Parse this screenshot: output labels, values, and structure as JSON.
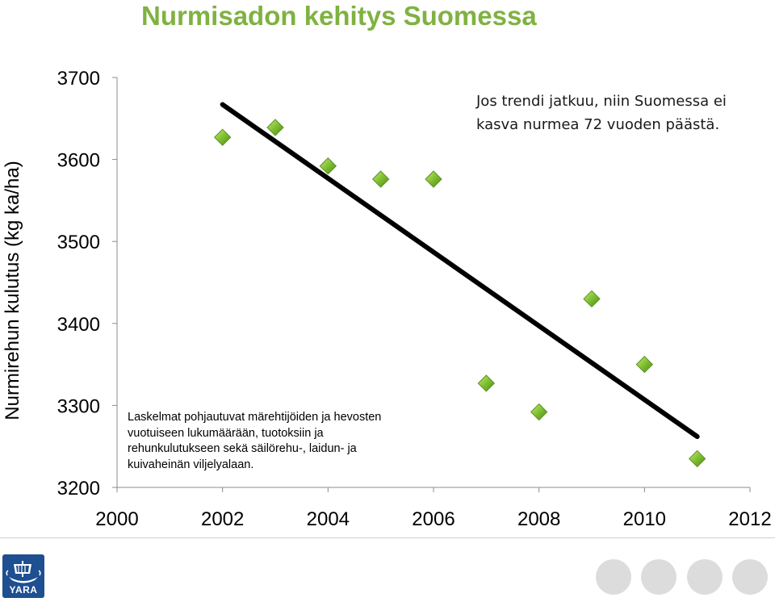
{
  "chart_data": {
    "type": "scatter",
    "title": "Nurmisadon kehitys Suomessa",
    "ylabel": "Nurmirehun kulutus  (kg ka/ha)",
    "xlabel": "",
    "xlim": [
      2000,
      2012
    ],
    "ylim": [
      3200,
      3700
    ],
    "xticks": [
      "2000",
      "2002",
      "2004",
      "2006",
      "2008",
      "2010",
      "2012"
    ],
    "yticks": [
      "3200",
      "3300",
      "3400",
      "3500",
      "3600",
      "3700"
    ],
    "grid": false,
    "points": [
      {
        "x": 2002,
        "y": 3627
      },
      {
        "x": 2003,
        "y": 3639
      },
      {
        "x": 2004,
        "y": 3592
      },
      {
        "x": 2005,
        "y": 3576
      },
      {
        "x": 2006,
        "y": 3576
      },
      {
        "x": 2007,
        "y": 3327
      },
      {
        "x": 2008,
        "y": 3292
      },
      {
        "x": 2009,
        "y": 3430
      },
      {
        "x": 2010,
        "y": 3350
      },
      {
        "x": 2011,
        "y": 3235
      }
    ],
    "trendline": {
      "x": [
        2002,
        2011
      ],
      "y": [
        3667,
        3262
      ]
    },
    "marker_color": "#7fbf2f",
    "trend_color": "#000000",
    "annotation": "Jos trendi jatkuu, niin Suomessa ei\nkasva nurmea 72 vuoden päästä.",
    "note": "Laskelmat pohjautuvat märehtijöiden ja hevosten\nvuotuiseen lukumäärään, tuotoksiin ja\nrehunkulutukseen sekä säilörehu-, laidun- ja\nkuivaheinän viljelyalaan."
  },
  "footer": {
    "logo_text": "YARA",
    "logo_icon": "viking-ship-icon",
    "brand_color": "#1d4f91",
    "decor_dot_color": "#dcdcdc"
  }
}
